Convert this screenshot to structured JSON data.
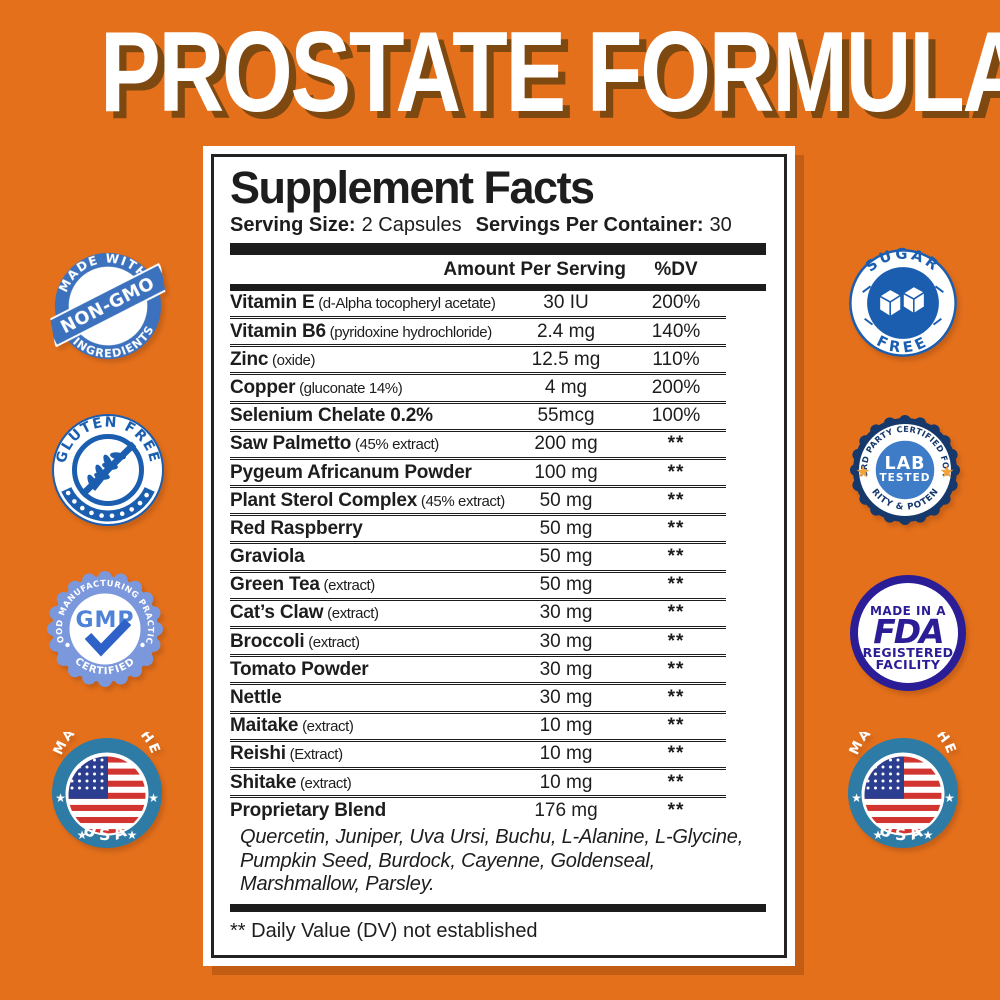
{
  "page": {
    "title": "PROSTATE FORMULA"
  },
  "colors": {
    "background_orange": "#E4701C",
    "title_shadow": "#7E4910",
    "panel_text": "#1d1d1d",
    "non_gmo_blue": "#3B71BD",
    "gluten_sugar_blue": "#1B5EB0",
    "gmp_periwinkle": "#7C98DC",
    "gmp_check_blue": "#2E62C8",
    "usa_ring_teal": "#2E7BA6",
    "flag_red": "#D23430",
    "flag_navy": "#2C3E8F",
    "lab_navy": "#16386B",
    "lab_center_blue": "#3E7CC7",
    "star_gold": "#F2A33C",
    "fda_indigo": "#2B1D96"
  },
  "panel": {
    "title": "Supplement Facts",
    "serving_size_label": "Serving Size:",
    "serving_size_value": "2 Capsules",
    "servings_per_container_label": "Servings Per Container:",
    "servings_per_container_value": "30",
    "column_headers": {
      "amount": "Amount Per Serving",
      "dv": "%DV"
    },
    "rows": [
      {
        "name": "Vitamin E",
        "note": "(d-Alpha tocopheryl acetate)",
        "amount": "30 IU",
        "dv": "200%"
      },
      {
        "name": "Vitamin B6",
        "note": "(pyridoxine hydrochloride)",
        "amount": "2.4 mg",
        "dv": "140%"
      },
      {
        "name": "Zinc",
        "note": "(oxide)",
        "amount": "12.5 mg",
        "dv": "110%"
      },
      {
        "name": "Copper",
        "note": "(gluconate 14%)",
        "amount": "4 mg",
        "dv": "200%"
      },
      {
        "name": "Selenium Chelate 0.2%",
        "note": "",
        "amount": "55mcg",
        "dv": "100%"
      },
      {
        "name": "Saw Palmetto",
        "note": "(45% extract)",
        "amount": "200 mg",
        "dv": "**"
      },
      {
        "name": "Pygeum Africanum Powder",
        "note": "",
        "amount": "100 mg",
        "dv": "**"
      },
      {
        "name": "Plant Sterol Complex",
        "note": "(45% extract)",
        "amount": "50 mg",
        "dv": "**"
      },
      {
        "name": "Red Raspberry",
        "note": "",
        "amount": "50 mg",
        "dv": "**"
      },
      {
        "name": "Graviola",
        "note": "",
        "amount": "50 mg",
        "dv": "**"
      },
      {
        "name": "Green Tea",
        "note": "(extract)",
        "amount": "50 mg",
        "dv": "**"
      },
      {
        "name": "Cat’s Claw",
        "note": "(extract)",
        "amount": "30 mg",
        "dv": "**"
      },
      {
        "name": "Broccoli",
        "note": "(extract)",
        "amount": "30 mg",
        "dv": "**"
      },
      {
        "name": "Tomato Powder",
        "note": "",
        "amount": "30 mg",
        "dv": "**"
      },
      {
        "name": "Nettle",
        "note": "",
        "amount": "30 mg",
        "dv": "**"
      },
      {
        "name": "Maitake",
        "note": "(extract)",
        "amount": "10 mg",
        "dv": "**"
      },
      {
        "name": "Reishi",
        "note": "(Extract)",
        "amount": "10 mg",
        "dv": "**"
      },
      {
        "name": "Shitake",
        "note": "(extract)",
        "amount": "10 mg",
        "dv": "**"
      },
      {
        "name": "Proprietary Blend",
        "note": "",
        "amount": "176 mg",
        "dv": "**"
      }
    ],
    "proprietary_blend_ingredients": "Quercetin, Juniper, Uva Ursi, Buchu, L-Alanine, L-Glycine, Pumpkin Seed, Burdock, Cayenne, Goldenseal, Marshmallow, Parsley.",
    "footnote": "** Daily Value (DV) not established"
  },
  "badges": {
    "non_gmo": {
      "top": "MADE WITH",
      "label": "NON-GMO",
      "bottom": "INGREDIENTS"
    },
    "gluten_free": {
      "label": "GLUTEN FREE"
    },
    "gmp": {
      "top": "GOOD MANUFACTURING PRACTICE",
      "label": "GMP",
      "bottom": "CERTIFIED"
    },
    "made_in_usa_left": {
      "top": "MADE IN THE",
      "bottom": "USA"
    },
    "sugar_free": {
      "top": "SUGAR",
      "bottom": "FREE"
    },
    "lab_tested": {
      "top": "3RD PARTY CERTIFIED FOR",
      "line1": "LAB",
      "line2": "TESTED",
      "bottom": "PURITY & POTENCY"
    },
    "fda": {
      "top": "MADE IN A",
      "logo": "FDA",
      "line1": "REGISTERED",
      "line2": "FACILITY"
    },
    "made_in_usa_right": {
      "top": "MADE IN THE",
      "bottom": "USA"
    }
  }
}
